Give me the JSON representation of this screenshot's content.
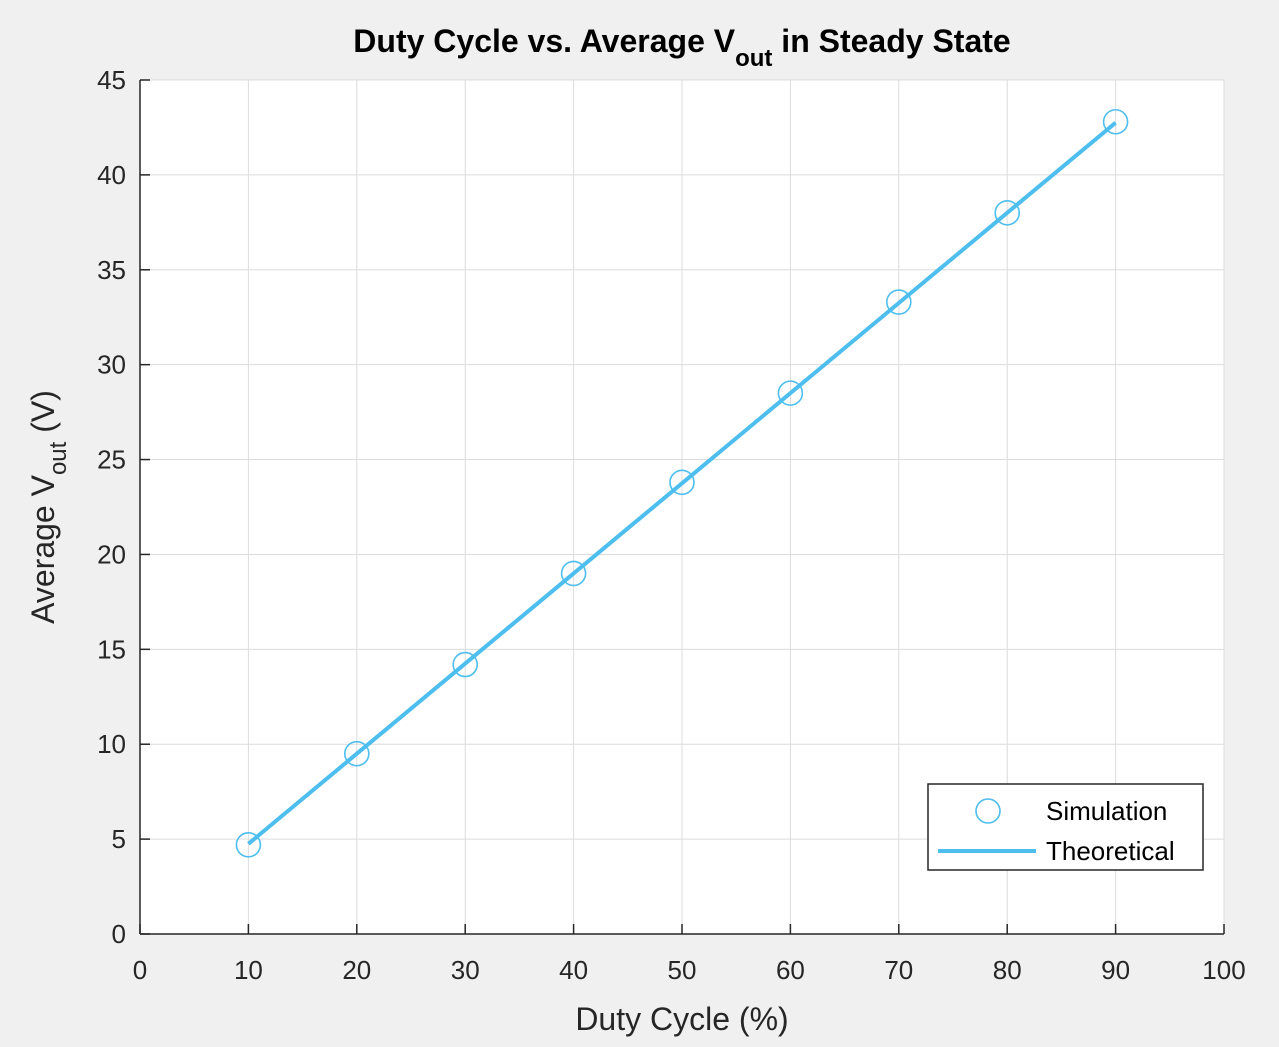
{
  "chart_data": {
    "type": "line",
    "title": {
      "prefix": "Duty Cycle vs. Average V",
      "subscript": "out",
      "suffix": " in Steady State"
    },
    "xlabel": "Duty Cycle (%)",
    "ylabel": {
      "prefix": "Average V",
      "subscript": "out",
      "suffix": " (V)"
    },
    "xlim": [
      0,
      100
    ],
    "ylim": [
      0,
      45
    ],
    "xticks": [
      "0",
      "10",
      "20",
      "30",
      "40",
      "50",
      "60",
      "70",
      "80",
      "90",
      "100"
    ],
    "yticks": [
      "0",
      "5",
      "10",
      "15",
      "20",
      "25",
      "30",
      "35",
      "40",
      "45"
    ],
    "grid": true,
    "legend_position": "bottom-right",
    "series_color": "#4DBEEE",
    "series": [
      {
        "name": "Simulation",
        "style": "markers",
        "marker": "circle",
        "x": [
          10,
          20,
          30,
          40,
          50,
          60,
          70,
          80,
          90
        ],
        "y": [
          4.7,
          9.5,
          14.2,
          19.0,
          23.8,
          28.5,
          33.3,
          38.0,
          42.8
        ]
      },
      {
        "name": "Theoretical",
        "style": "line",
        "x": [
          10,
          20,
          30,
          40,
          50,
          60,
          70,
          80,
          90
        ],
        "y": [
          4.75,
          9.5,
          14.25,
          19.0,
          23.75,
          28.5,
          33.25,
          38.0,
          42.75
        ]
      }
    ]
  }
}
